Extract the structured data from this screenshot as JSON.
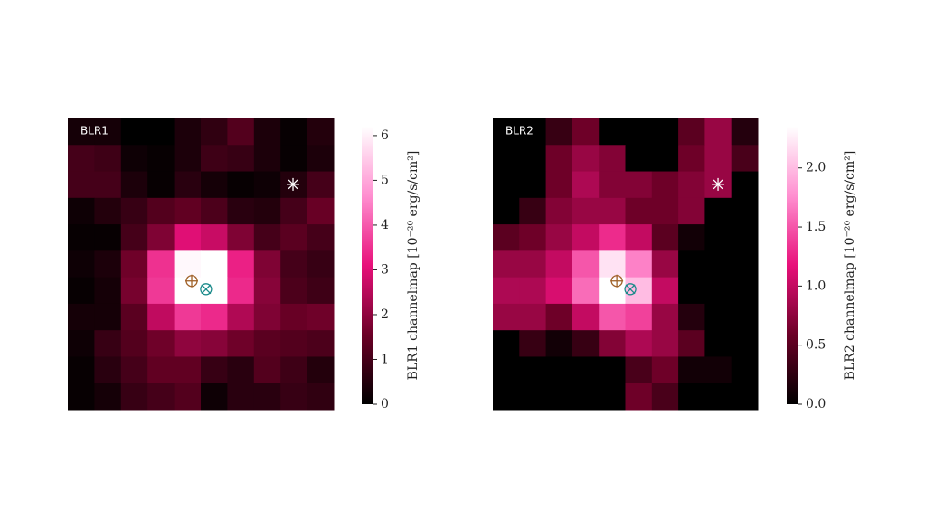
{
  "chart_data": [
    {
      "type": "heatmap",
      "title": "BLR1",
      "values": [
        [
          0.3,
          0.3,
          0,
          0,
          0.4,
          0.7,
          1.2,
          0.4,
          0.1,
          0.5
        ],
        [
          1.0,
          0.9,
          0.2,
          0.1,
          0.4,
          0.9,
          0.8,
          0.4,
          0.1,
          0.4
        ],
        [
          1.0,
          1.0,
          0.4,
          0.1,
          0.6,
          0.3,
          0.1,
          0.2,
          0.5,
          1.0
        ],
        [
          0.2,
          0.5,
          0.8,
          1.2,
          1.4,
          1.1,
          0.6,
          0.5,
          1.0,
          1.5
        ],
        [
          0.1,
          0.1,
          1.0,
          1.8,
          3.0,
          2.7,
          1.8,
          1.0,
          1.3,
          1.0
        ],
        [
          0.2,
          0.4,
          1.6,
          3.5,
          6.1,
          6.2,
          3.3,
          1.8,
          1.0,
          0.8
        ],
        [
          0.1,
          0.3,
          1.7,
          3.6,
          6.2,
          6.2,
          3.4,
          1.9,
          1.1,
          0.9
        ],
        [
          0.3,
          0.3,
          1.3,
          2.6,
          3.6,
          3.4,
          2.4,
          1.8,
          1.5,
          1.6
        ],
        [
          0.2,
          0.8,
          1.2,
          1.6,
          2.0,
          1.9,
          1.6,
          1.3,
          1.2,
          1.1
        ],
        [
          0.1,
          0.6,
          1.0,
          1.4,
          1.4,
          0.8,
          0.6,
          1.2,
          0.9,
          0.5
        ],
        [
          0.1,
          0.3,
          0.8,
          1.0,
          1.2,
          0.2,
          0.6,
          0.6,
          0.8,
          0.7
        ]
      ],
      "zlim": [
        0,
        6.2
      ],
      "zticks": [
        0,
        1,
        2,
        3,
        4,
        5,
        6
      ],
      "colorbar_label": "BLR1 channelmap [10⁻²⁰ erg/s/cm²]",
      "colormap": [
        "#000000",
        "#6b0026",
        "#e8107a",
        "#ff8fd0",
        "#ffffff"
      ],
      "markers": [
        {
          "symbol": "asterisk",
          "color": "#ffffff",
          "x": 8.47,
          "y": 2.49
        },
        {
          "symbol": "circle-plus",
          "color": "#a0622a",
          "x": 4.66,
          "y": 6.14
        },
        {
          "symbol": "circle-x",
          "color": "#1a8a8a",
          "x": 5.2,
          "y": 6.45
        }
      ]
    },
    {
      "type": "heatmap",
      "title": "BLR2",
      "values": [
        [
          0,
          0,
          0.3,
          0.6,
          0,
          0,
          0,
          0.5,
          0.8,
          0.2
        ],
        [
          0,
          0,
          0.6,
          0.8,
          0.7,
          0,
          0,
          0.6,
          0.8,
          0.4
        ],
        [
          0,
          0,
          0.6,
          0.9,
          0.7,
          0.7,
          0.6,
          0.7,
          0.8,
          0
        ],
        [
          0,
          0.3,
          0.7,
          0.8,
          0.8,
          0.6,
          0.6,
          0.7,
          0,
          0
        ],
        [
          0.5,
          0.6,
          0.8,
          1.0,
          1.3,
          1.0,
          0.5,
          0.1,
          0,
          0
        ],
        [
          0.8,
          0.8,
          1.0,
          1.5,
          2.2,
          1.7,
          0.8,
          0,
          0,
          0
        ],
        [
          0.9,
          0.9,
          1.1,
          1.6,
          2.35,
          2.0,
          1.0,
          0,
          0,
          0
        ],
        [
          0.8,
          0.8,
          0.6,
          1.0,
          1.5,
          1.4,
          0.8,
          0.2,
          0,
          0
        ],
        [
          0,
          0.3,
          0.1,
          0.3,
          0.7,
          0.9,
          0.8,
          0.5,
          0,
          0
        ],
        [
          0,
          0,
          0,
          0,
          0,
          0.4,
          0.6,
          0.1,
          0.1,
          0
        ],
        [
          0,
          0,
          0,
          0,
          0,
          0.6,
          0.4,
          0,
          0,
          0
        ]
      ],
      "zlim": [
        0,
        2.35
      ],
      "zticks": [
        {
          "value": 0,
          "label": "0.0"
        },
        {
          "value": 0.5,
          "label": "0.5"
        },
        {
          "value": 1,
          "label": "1.0"
        },
        {
          "value": 1.5,
          "label": "1.5"
        },
        {
          "value": 2,
          "label": "2.0"
        }
      ],
      "colorbar_label": "BLR2 channelmap [10⁻²⁰ erg/s/cm²]",
      "colormap": [
        "#000000",
        "#6b0026",
        "#e8107a",
        "#ff8fd0",
        "#ffffff"
      ],
      "markers": [
        {
          "symbol": "asterisk",
          "color": "#ffffff",
          "x": 8.5,
          "y": 2.49
        },
        {
          "symbol": "circle-plus",
          "color": "#a0622a",
          "x": 4.68,
          "y": 6.14
        },
        {
          "symbol": "circle-x",
          "color": "#1a8a8a",
          "x": 5.19,
          "y": 6.45
        }
      ]
    }
  ]
}
